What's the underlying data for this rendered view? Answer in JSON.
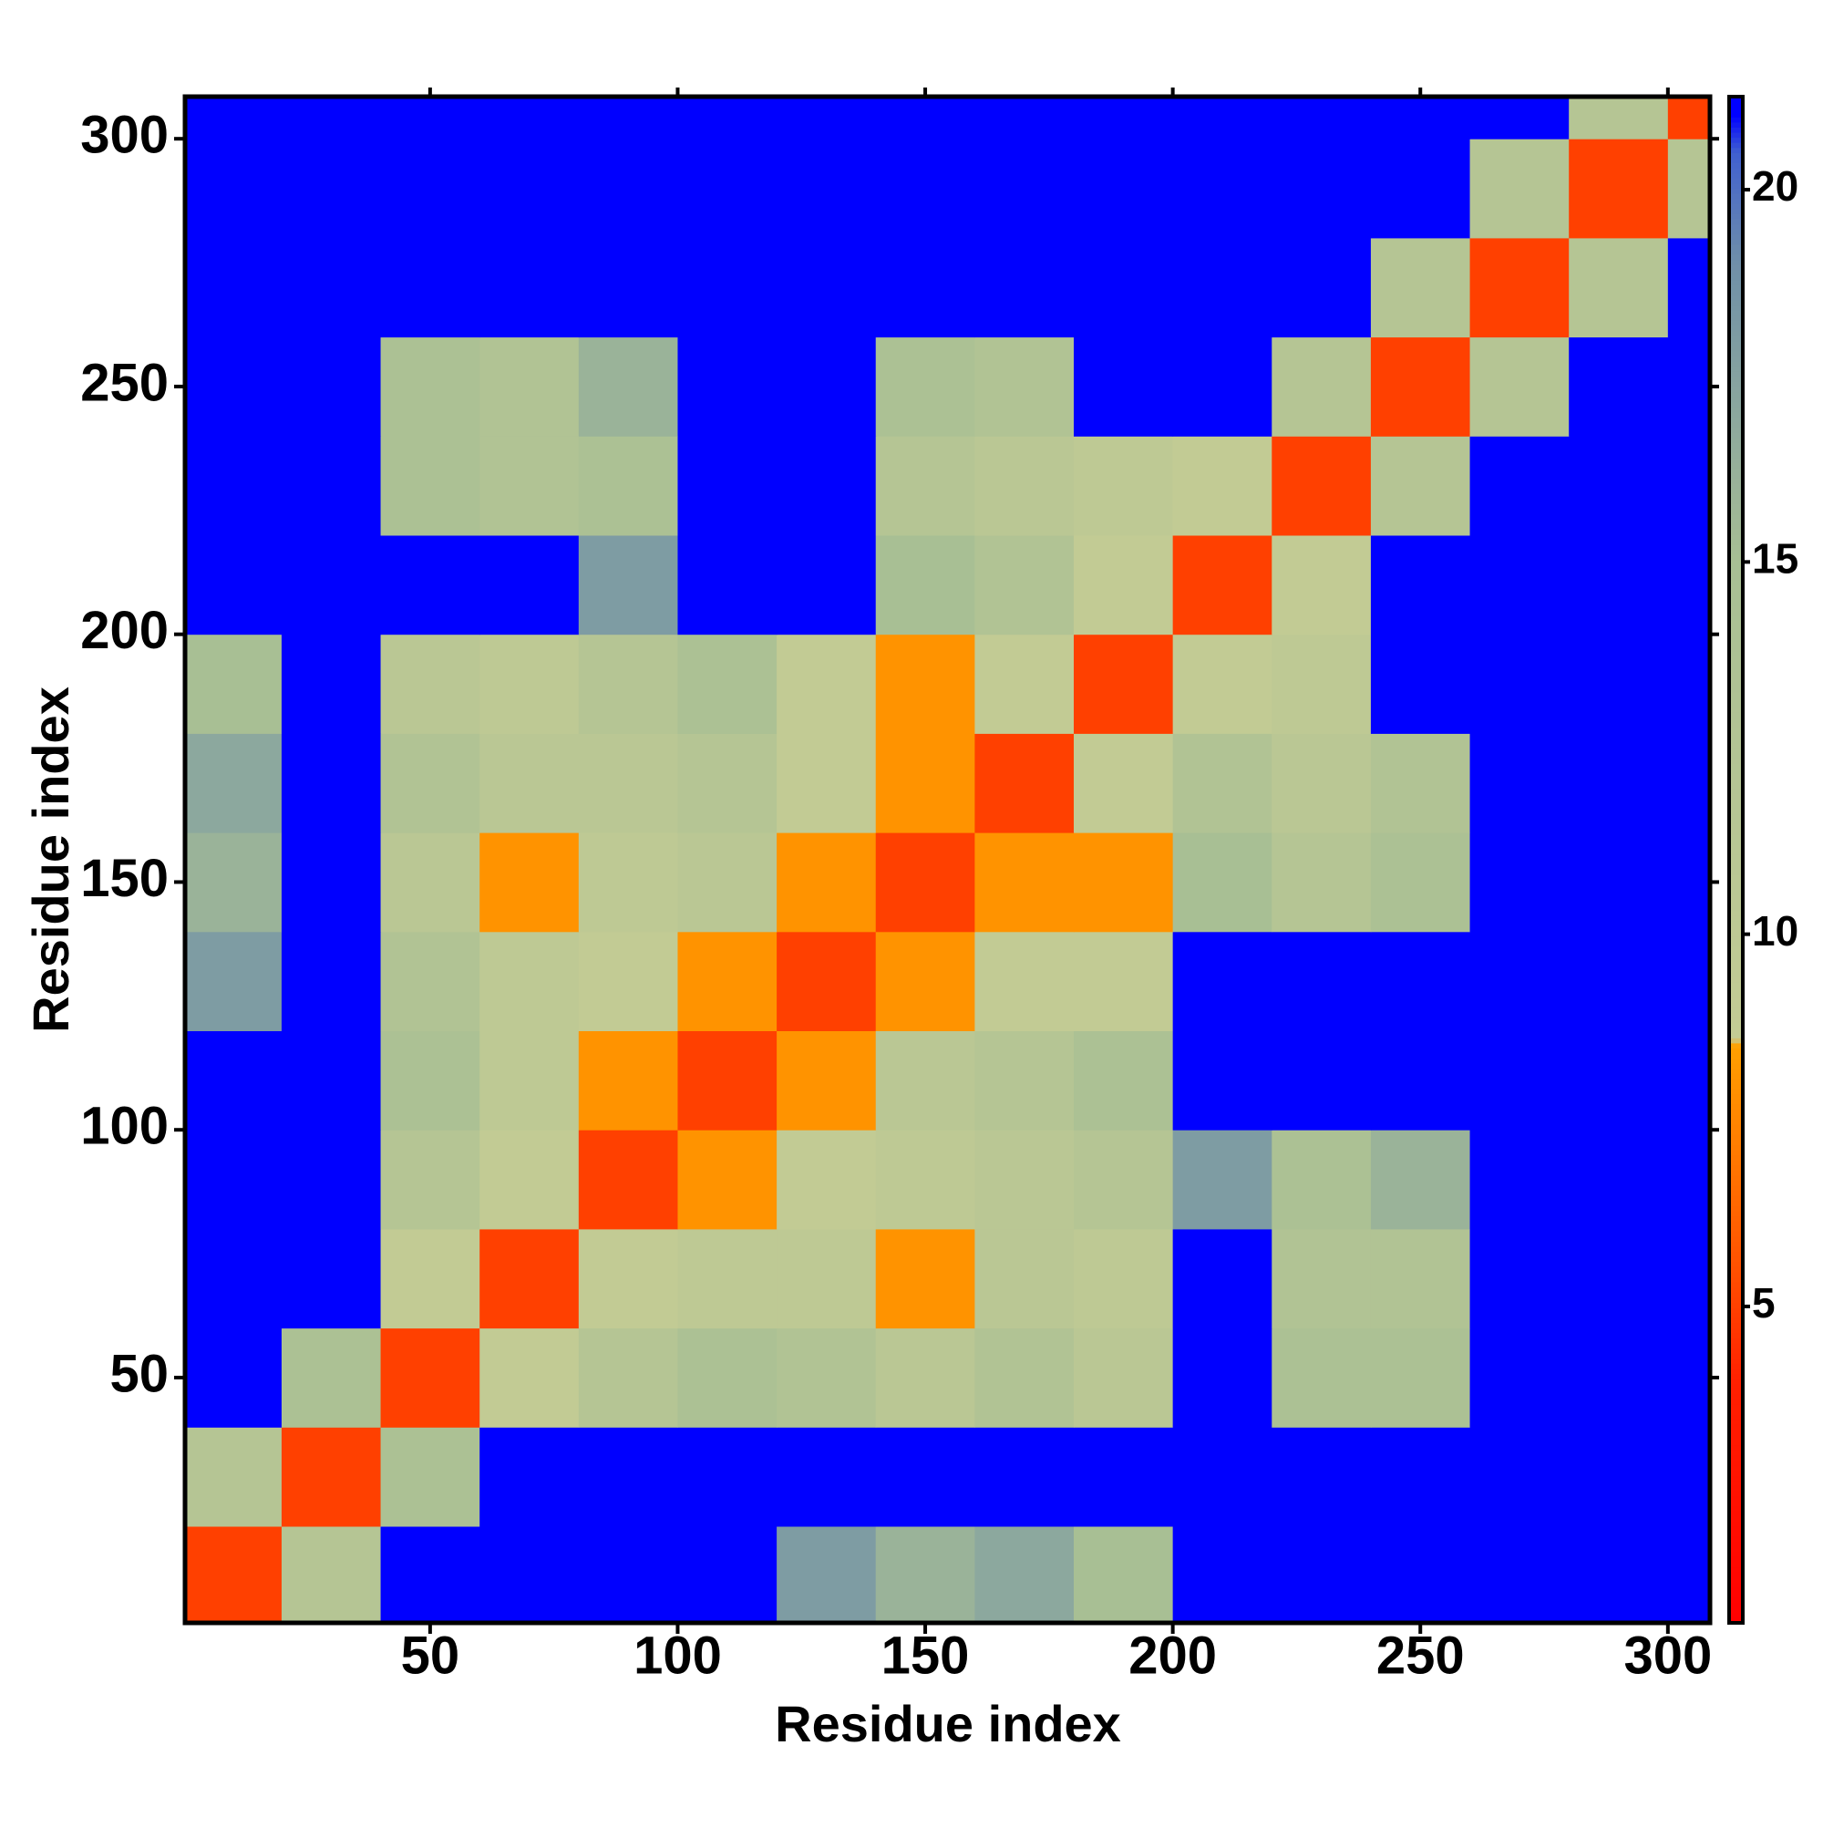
{
  "chart_data": {
    "type": "heatmap",
    "xlabel": "Residue index",
    "ylabel": "Residue index",
    "x": [
      10,
      30,
      50,
      70,
      90,
      110,
      130,
      150,
      170,
      190,
      210,
      230,
      250,
      270,
      290,
      310
    ],
    "y": [
      10,
      30,
      50,
      70,
      90,
      110,
      130,
      150,
      170,
      190,
      210,
      230,
      250,
      270,
      290,
      310
    ],
    "z": [
      [
        5,
        12,
        21,
        21,
        21,
        21,
        18,
        16,
        17,
        15,
        21,
        21,
        21,
        21,
        21,
        21
      ],
      [
        12,
        5,
        14,
        21,
        21,
        21,
        21,
        21,
        21,
        21,
        21,
        21,
        21,
        21,
        21,
        21
      ],
      [
        21,
        14,
        5,
        9,
        12,
        14,
        13,
        11,
        13,
        11,
        21,
        14,
        14,
        21,
        21,
        21
      ],
      [
        21,
        21,
        9,
        5,
        9,
        10,
        10,
        8,
        11,
        10,
        21,
        13,
        13,
        21,
        21,
        21
      ],
      [
        21,
        21,
        12,
        9,
        5,
        8,
        9,
        10,
        11,
        12,
        18,
        14,
        16,
        21,
        21,
        21
      ],
      [
        21,
        21,
        14,
        10,
        8,
        5,
        8,
        11,
        12,
        14,
        21,
        21,
        21,
        21,
        21,
        21
      ],
      [
        18,
        21,
        13,
        10,
        9,
        8,
        5,
        8,
        9,
        9,
        21,
        21,
        21,
        21,
        21,
        21
      ],
      [
        16,
        21,
        11,
        8,
        10,
        11,
        8,
        5,
        8,
        8,
        15,
        12,
        14,
        21,
        21,
        21
      ],
      [
        17,
        21,
        13,
        11,
        11,
        12,
        9,
        8,
        5,
        9,
        13,
        11,
        13,
        21,
        21,
        21
      ],
      [
        15,
        21,
        11,
        10,
        12,
        14,
        9,
        8,
        9,
        5,
        9,
        10,
        21,
        21,
        21,
        21
      ],
      [
        21,
        21,
        21,
        21,
        18,
        21,
        21,
        15,
        13,
        9,
        5,
        9,
        21,
        21,
        21,
        21
      ],
      [
        21,
        21,
        14,
        13,
        14,
        21,
        21,
        12,
        11,
        10,
        9,
        5,
        12,
        21,
        21,
        21
      ],
      [
        21,
        21,
        14,
        13,
        16,
        21,
        21,
        14,
        13,
        21,
        21,
        12,
        5,
        12,
        21,
        21
      ],
      [
        21,
        21,
        21,
        21,
        21,
        21,
        21,
        21,
        21,
        21,
        21,
        21,
        12,
        5,
        12,
        21
      ],
      [
        21,
        21,
        21,
        21,
        21,
        21,
        21,
        21,
        21,
        21,
        21,
        21,
        21,
        12,
        5,
        12
      ],
      [
        21,
        21,
        21,
        21,
        21,
        21,
        21,
        21,
        21,
        21,
        21,
        21,
        21,
        21,
        12,
        5
      ]
    ],
    "xlim": [
      0.5,
      308.5
    ],
    "ylim": [
      0.5,
      308.5
    ],
    "xticks": [
      50,
      100,
      150,
      200,
      250,
      300
    ],
    "yticks": [
      50,
      100,
      150,
      200,
      250,
      300
    ],
    "clim": [
      0.75,
      21.25
    ],
    "cticks": [
      5,
      10,
      15,
      20
    ],
    "colorscale": [
      [
        0.75,
        "#ff0000"
      ],
      [
        4,
        "#ff2000"
      ],
      [
        5.5,
        "#ff5000"
      ],
      [
        8.5,
        "#ffa000"
      ],
      [
        8.6,
        "#c4cc94"
      ],
      [
        15,
        "#a8bf94"
      ],
      [
        19,
        "#7090a8"
      ],
      [
        20.5,
        "#4060d0"
      ],
      [
        21,
        "#0000ff"
      ],
      [
        21.25,
        "#0000ff"
      ]
    ]
  }
}
